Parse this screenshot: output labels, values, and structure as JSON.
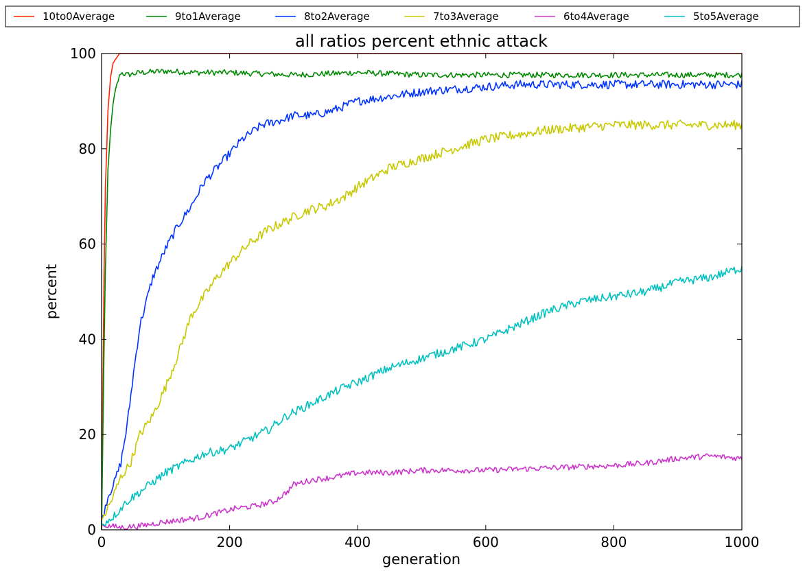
{
  "chart_data": {
    "type": "line",
    "title": "all ratios percent ethnic attack",
    "xlabel": "generation",
    "ylabel": "percent",
    "xlim": [
      0,
      1000
    ],
    "ylim": [
      0,
      100
    ],
    "xticks": [
      "0",
      "200",
      "400",
      "600",
      "800",
      "1000"
    ],
    "yticks": [
      "0",
      "20",
      "40",
      "60",
      "80",
      "100"
    ],
    "legend_position": "top, above plot",
    "grid": false,
    "series": [
      {
        "name": "10to0Average",
        "color": "#ff2200",
        "points": [
          [
            0,
            0
          ],
          [
            3,
            45
          ],
          [
            6,
            72
          ],
          [
            10,
            88
          ],
          [
            14,
            95
          ],
          [
            18,
            98
          ],
          [
            23,
            99
          ],
          [
            28,
            100
          ],
          [
            300,
            100
          ],
          [
            680,
            100
          ],
          [
            1000,
            100
          ]
        ]
      },
      {
        "name": "9to1Average",
        "color": "#008800",
        "points": [
          [
            0,
            0
          ],
          [
            3,
            30
          ],
          [
            6,
            55
          ],
          [
            10,
            75
          ],
          [
            15,
            86
          ],
          [
            20,
            91
          ],
          [
            25,
            94
          ],
          [
            30,
            96
          ],
          [
            40,
            95.5
          ],
          [
            60,
            96
          ],
          [
            100,
            96.3
          ],
          [
            150,
            96
          ],
          [
            200,
            96
          ],
          [
            300,
            95.5
          ],
          [
            400,
            96
          ],
          [
            500,
            95.5
          ],
          [
            600,
            95.5
          ],
          [
            700,
            95.5
          ],
          [
            800,
            95.5
          ],
          [
            900,
            95.5
          ],
          [
            1000,
            95.5
          ]
        ]
      },
      {
        "name": "8to2Average",
        "color": "#0033ff",
        "points": [
          [
            0,
            2
          ],
          [
            10,
            7
          ],
          [
            20,
            10
          ],
          [
            30,
            14
          ],
          [
            40,
            22
          ],
          [
            50,
            33
          ],
          [
            60,
            43
          ],
          [
            70,
            48
          ],
          [
            80,
            53
          ],
          [
            100,
            59
          ],
          [
            120,
            64
          ],
          [
            140,
            68
          ],
          [
            160,
            73
          ],
          [
            180,
            76
          ],
          [
            200,
            79
          ],
          [
            220,
            82
          ],
          [
            250,
            85
          ],
          [
            280,
            86
          ],
          [
            300,
            87
          ],
          [
            330,
            87
          ],
          [
            360,
            88
          ],
          [
            400,
            90
          ],
          [
            450,
            91
          ],
          [
            500,
            92
          ],
          [
            550,
            92.5
          ],
          [
            600,
            93
          ],
          [
            650,
            93.5
          ],
          [
            700,
            93.5
          ],
          [
            800,
            93.5
          ],
          [
            900,
            93.5
          ],
          [
            1000,
            93.5
          ]
        ]
      },
      {
        "name": "7to3Average",
        "color": "#c8c800",
        "points": [
          [
            0,
            2
          ],
          [
            15,
            6
          ],
          [
            30,
            11
          ],
          [
            45,
            14
          ],
          [
            60,
            20
          ],
          [
            80,
            24
          ],
          [
            100,
            30
          ],
          [
            120,
            37
          ],
          [
            140,
            45
          ],
          [
            160,
            49
          ],
          [
            180,
            53
          ],
          [
            200,
            56
          ],
          [
            230,
            60
          ],
          [
            260,
            63
          ],
          [
            290,
            65
          ],
          [
            320,
            67
          ],
          [
            350,
            68
          ],
          [
            380,
            70
          ],
          [
            400,
            72
          ],
          [
            450,
            76
          ],
          [
            500,
            78
          ],
          [
            550,
            80
          ],
          [
            600,
            82
          ],
          [
            650,
            83
          ],
          [
            700,
            84
          ],
          [
            750,
            84.5
          ],
          [
            800,
            85
          ],
          [
            850,
            85
          ],
          [
            900,
            85
          ],
          [
            1000,
            85
          ]
        ]
      },
      {
        "name": "6to4Average",
        "color": "#cc33cc",
        "points": [
          [
            0,
            1
          ],
          [
            30,
            0.5
          ],
          [
            60,
            0.8
          ],
          [
            90,
            1.5
          ],
          [
            120,
            2
          ],
          [
            150,
            2.5
          ],
          [
            180,
            3.5
          ],
          [
            210,
            4.5
          ],
          [
            240,
            5
          ],
          [
            270,
            6
          ],
          [
            290,
            8
          ],
          [
            300,
            9.5
          ],
          [
            330,
            10.5
          ],
          [
            360,
            11
          ],
          [
            400,
            12
          ],
          [
            450,
            12
          ],
          [
            500,
            12.5
          ],
          [
            600,
            12.5
          ],
          [
            700,
            13
          ],
          [
            800,
            13.5
          ],
          [
            850,
            14
          ],
          [
            900,
            15
          ],
          [
            950,
            15.5
          ],
          [
            1000,
            15
          ]
        ]
      },
      {
        "name": "5to5Average",
        "color": "#00c0c0",
        "points": [
          [
            0,
            1
          ],
          [
            20,
            3
          ],
          [
            40,
            6
          ],
          [
            60,
            8
          ],
          [
            80,
            10
          ],
          [
            100,
            12
          ],
          [
            130,
            14
          ],
          [
            160,
            16
          ],
          [
            200,
            17
          ],
          [
            230,
            19
          ],
          [
            260,
            21
          ],
          [
            290,
            24
          ],
          [
            320,
            26
          ],
          [
            350,
            28
          ],
          [
            380,
            30
          ],
          [
            400,
            31
          ],
          [
            450,
            34
          ],
          [
            500,
            36
          ],
          [
            550,
            38
          ],
          [
            600,
            40
          ],
          [
            650,
            43
          ],
          [
            700,
            46
          ],
          [
            750,
            48
          ],
          [
            800,
            49
          ],
          [
            850,
            50
          ],
          [
            900,
            52
          ],
          [
            950,
            53
          ],
          [
            1000,
            55
          ]
        ]
      }
    ]
  }
}
